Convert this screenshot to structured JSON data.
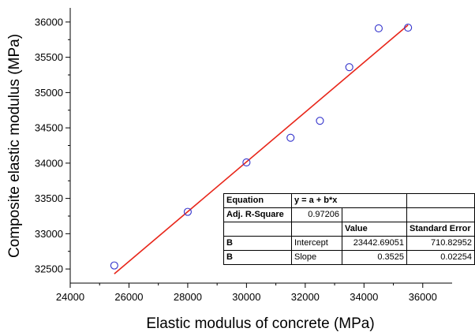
{
  "chart_data": {
    "type": "scatter",
    "xlabel": "Elastic modulus of concrete (MPa)",
    "ylabel": "Composite elastic modulus (MPa)",
    "xlim": [
      24000,
      37000
    ],
    "ylim": [
      32300,
      36200
    ],
    "x_ticks": [
      24000,
      26000,
      28000,
      30000,
      32000,
      34000,
      36000
    ],
    "y_ticks": [
      32500,
      33000,
      33500,
      34000,
      34500,
      35000,
      35500,
      36000
    ],
    "points": {
      "x": [
        25500,
        28000,
        30000,
        31500,
        32500,
        33500,
        34500,
        35500
      ],
      "y": [
        32550,
        33310,
        34010,
        34360,
        34600,
        35360,
        35910,
        35920
      ]
    },
    "fit_line": {
      "intercept": 23442.69051,
      "slope": 0.3525,
      "x_range": [
        25500,
        35500
      ]
    },
    "colors": {
      "points": "#3333cc",
      "fit_line": "#e8261a"
    },
    "grid": false
  },
  "fit_table": {
    "equation_label": "Equation",
    "equation_value": "y = a + b*x",
    "r2_label": "Adj. R-Square",
    "r2_value": "0.97206",
    "value_header": "Value",
    "se_header": "Standard Error",
    "rows": [
      {
        "param": "B",
        "name": "Intercept",
        "value": "23442.69051",
        "se": "710.82952"
      },
      {
        "param": "B",
        "name": "Slope",
        "value": "0.3525",
        "se": "0.02254"
      }
    ]
  }
}
